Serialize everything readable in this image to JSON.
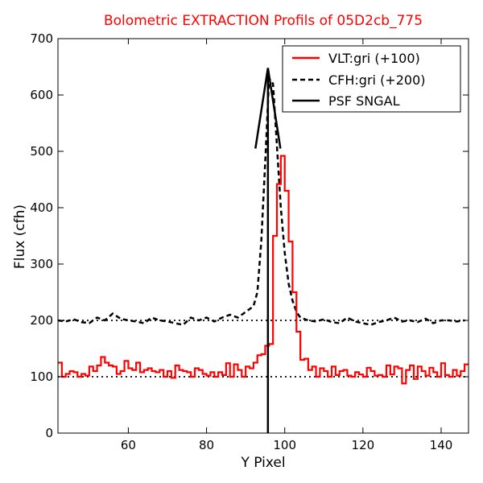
{
  "chart_data": {
    "type": "line",
    "title": "Bolometric EXTRACTION Profils of 05D2cb_775",
    "xlabel": "Y Pixel",
    "ylabel": "Flux (cfh)",
    "xlim": [
      42,
      147
    ],
    "ylim": [
      0,
      700
    ],
    "xticks": [
      60,
      80,
      100,
      120,
      140
    ],
    "yticks": [
      0,
      100,
      200,
      300,
      400,
      500,
      600,
      700
    ],
    "grid": false,
    "legend_position": "top-right",
    "colors": {
      "title": "#ff0000",
      "vlt": "#ff0000",
      "cfh": "#000000",
      "psf": "#000000",
      "reference": "#000000"
    },
    "reference_lines": [
      100,
      200
    ],
    "series": [
      {
        "name": "VLT:gri (+100)",
        "style": "steps-red",
        "x": [
          42,
          43,
          44,
          45,
          46,
          47,
          48,
          49,
          50,
          51,
          52,
          53,
          54,
          55,
          56,
          57,
          58,
          59,
          60,
          61,
          62,
          63,
          64,
          65,
          66,
          67,
          68,
          69,
          70,
          71,
          72,
          73,
          74,
          75,
          76,
          77,
          78,
          79,
          80,
          81,
          82,
          83,
          84,
          85,
          86,
          87,
          88,
          89,
          90,
          91,
          92,
          93,
          94,
          95,
          96,
          97,
          98,
          99,
          100,
          101,
          102,
          103,
          104,
          105,
          106,
          107,
          108,
          109,
          110,
          111,
          112,
          113,
          114,
          115,
          116,
          117,
          118,
          119,
          120,
          121,
          122,
          123,
          124,
          125,
          126,
          127,
          128,
          129,
          130,
          131,
          132,
          133,
          134,
          135,
          136,
          137,
          138,
          139,
          140,
          141,
          142,
          143,
          144,
          145,
          146
        ],
        "y": [
          125,
          100,
          105,
          110,
          108,
          100,
          105,
          102,
          118,
          110,
          120,
          135,
          125,
          120,
          118,
          105,
          110,
          128,
          115,
          112,
          125,
          108,
          112,
          115,
          110,
          108,
          112,
          100,
          110,
          98,
          120,
          112,
          110,
          108,
          100,
          115,
          112,
          105,
          102,
          108,
          100,
          108,
          103,
          124,
          100,
          122,
          112,
          100,
          118,
          115,
          125,
          138,
          140,
          155,
          158,
          350,
          442,
          492,
          430,
          340,
          250,
          180,
          130,
          132,
          112,
          118,
          100,
          115,
          110,
          100,
          118,
          103,
          110,
          112,
          102,
          100,
          108,
          104,
          100,
          116,
          110,
          102,
          103,
          100,
          120,
          104,
          118,
          115,
          88,
          112,
          120,
          96,
          118,
          110,
          102,
          116,
          108,
          100,
          124,
          103,
          100,
          112,
          102,
          110,
          122
        ]
      },
      {
        "name": "CFH:gri (+200)",
        "style": "dashed-black",
        "x": [
          42,
          44,
          46,
          48,
          50,
          52,
          54,
          56,
          58,
          60,
          62,
          64,
          66,
          68,
          70,
          72,
          74,
          76,
          78,
          80,
          82,
          84,
          86,
          88,
          90,
          92,
          93,
          94,
          95,
          96,
          97,
          98,
          99,
          100,
          101,
          102,
          103,
          104,
          106,
          108,
          110,
          112,
          114,
          116,
          118,
          120,
          122,
          124,
          126,
          128,
          130,
          132,
          134,
          136,
          138,
          140,
          142,
          144,
          146
        ],
        "y": [
          200,
          198,
          202,
          197,
          195,
          205,
          200,
          212,
          203,
          200,
          198,
          195,
          205,
          200,
          198,
          195,
          192,
          205,
          200,
          205,
          198,
          205,
          210,
          205,
          215,
          225,
          250,
          340,
          480,
          630,
          620,
          510,
          400,
          320,
          265,
          235,
          215,
          205,
          200,
          198,
          202,
          197,
          195,
          205,
          198,
          195,
          192,
          197,
          200,
          205,
          198,
          200,
          197,
          203,
          195,
          200,
          200,
          198,
          200
        ]
      },
      {
        "name": "PSF SNGAL",
        "style": "solid-black",
        "x": [
          95.7,
          95.7
        ],
        "y": [
          0,
          645
        ],
        "arrow_head": {
          "x": [
            92.5,
            95.7,
            98.9
          ],
          "y": [
            505,
            648,
            505
          ]
        }
      }
    ]
  }
}
